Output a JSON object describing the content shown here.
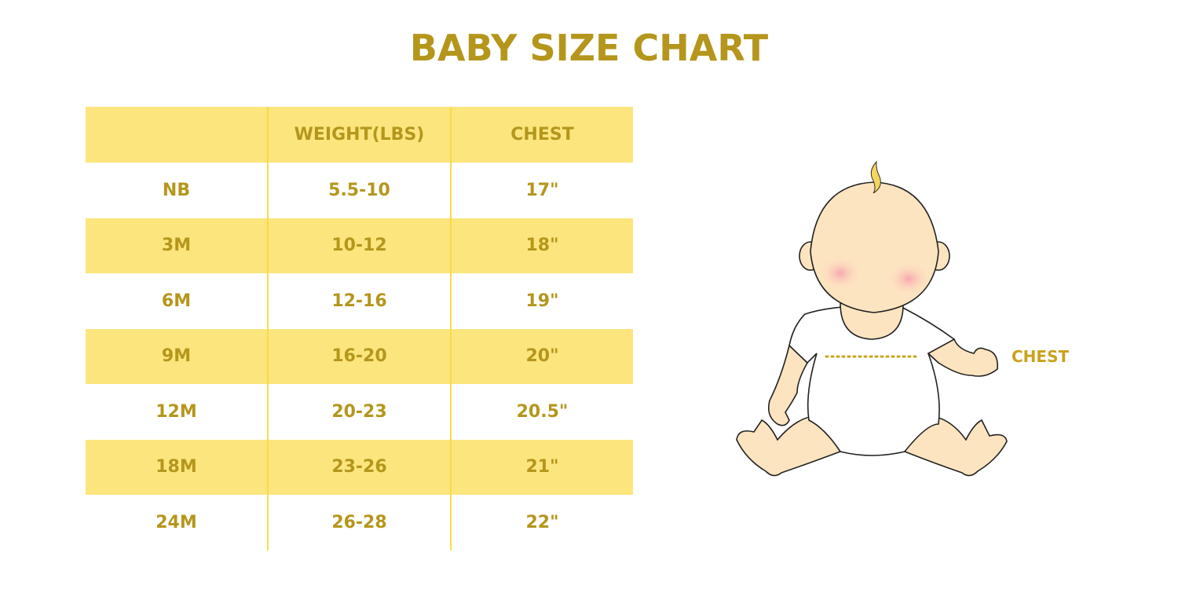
{
  "title": "BABY SIZE CHART",
  "table": {
    "headers": [
      "",
      "WEIGHT(LBS)",
      "CHEST"
    ],
    "rows": [
      [
        "NB",
        "5.5-10",
        "17\""
      ],
      [
        "3M",
        "10-12",
        "18\""
      ],
      [
        "6M",
        "12-16",
        "19\""
      ],
      [
        "9M",
        "16-20",
        "20\""
      ],
      [
        "12M",
        "20-23",
        "20.5\""
      ],
      [
        "18M",
        "23-26",
        "21\""
      ],
      [
        "24M",
        "26-28",
        "22\""
      ]
    ]
  },
  "illustration": {
    "chest_label": "CHEST",
    "icon": "baby-illustration"
  },
  "colors": {
    "text": "#b5961c",
    "band": "#fbe57c",
    "divider": "#fbd94a"
  }
}
